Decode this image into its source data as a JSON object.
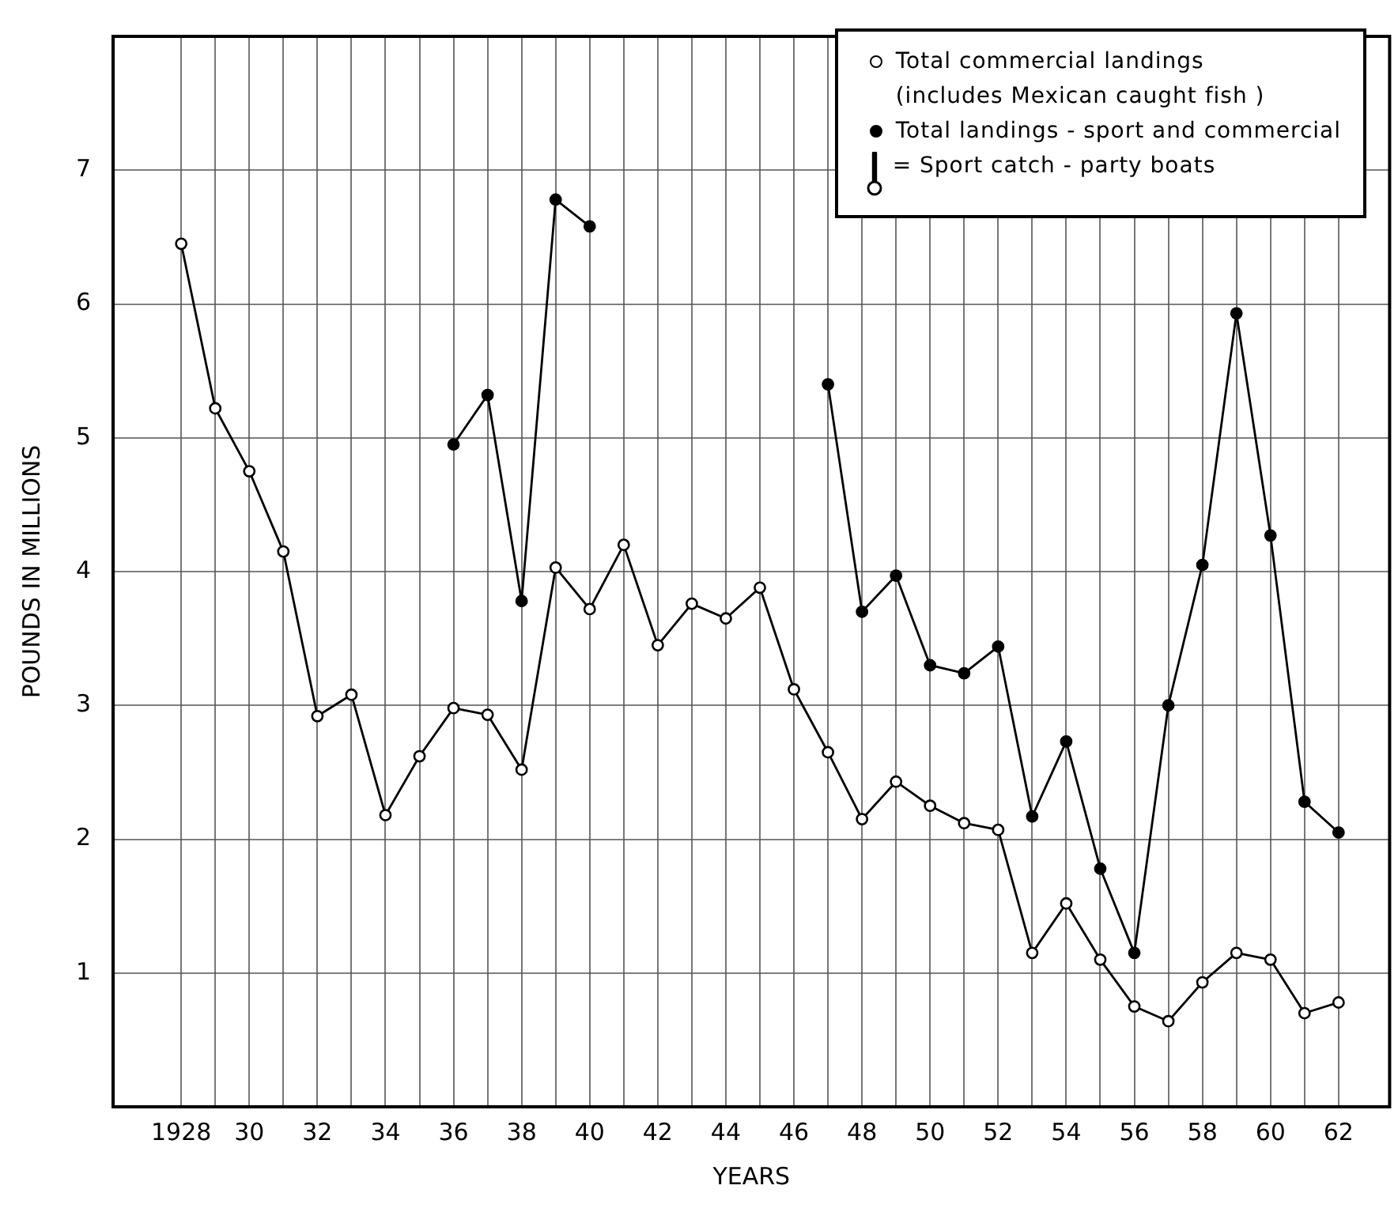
{
  "chart_data": {
    "type": "line",
    "xlabel": "YEARS",
    "ylabel": "POUNDS IN MILLIONS",
    "xlim": [
      1926,
      1963.5
    ],
    "ylim": [
      0,
      8
    ],
    "xticks": [
      {
        "value": 1928,
        "label": "1928"
      },
      {
        "value": 1929,
        "label": null
      },
      {
        "value": 1930,
        "label": "30"
      },
      {
        "value": 1931,
        "label": null
      },
      {
        "value": 1932,
        "label": "32"
      },
      {
        "value": 1933,
        "label": null
      },
      {
        "value": 1934,
        "label": "34"
      },
      {
        "value": 1935,
        "label": null
      },
      {
        "value": 1936,
        "label": "36"
      },
      {
        "value": 1937,
        "label": null
      },
      {
        "value": 1938,
        "label": "38"
      },
      {
        "value": 1939,
        "label": null
      },
      {
        "value": 1940,
        "label": "40"
      },
      {
        "value": 1941,
        "label": null
      },
      {
        "value": 1942,
        "label": "42"
      },
      {
        "value": 1943,
        "label": null
      },
      {
        "value": 1944,
        "label": "44"
      },
      {
        "value": 1945,
        "label": null
      },
      {
        "value": 1946,
        "label": "46"
      },
      {
        "value": 1947,
        "label": null
      },
      {
        "value": 1948,
        "label": "48"
      },
      {
        "value": 1949,
        "label": null
      },
      {
        "value": 1950,
        "label": "50"
      },
      {
        "value": 1951,
        "label": null
      },
      {
        "value": 1952,
        "label": "52"
      },
      {
        "value": 1953,
        "label": null
      },
      {
        "value": 1954,
        "label": "54"
      },
      {
        "value": 1955,
        "label": null
      },
      {
        "value": 1956,
        "label": "56"
      },
      {
        "value": 1957,
        "label": null
      },
      {
        "value": 1958,
        "label": "58"
      },
      {
        "value": 1959,
        "label": null
      },
      {
        "value": 1960,
        "label": "60"
      },
      {
        "value": 1961,
        "label": null
      },
      {
        "value": 1962,
        "label": "62"
      }
    ],
    "yticks": [
      1,
      2,
      3,
      4,
      5,
      6,
      7
    ],
    "grid": true,
    "legend": "top right",
    "marker": "circle",
    "line_style": "solid",
    "series": [
      {
        "name": "Total commercial landings\n(includes Mexican caught fish )",
        "color": "#000000",
        "x": [
          1928,
          1929,
          1930,
          1931,
          1932,
          1933,
          1934,
          1935,
          1936,
          1937,
          1938,
          1939,
          1940,
          1941,
          1942,
          1943,
          1944,
          1945,
          1946,
          1947,
          1948,
          1949,
          1950,
          1951,
          1952,
          1953,
          1954,
          1955,
          1956,
          1957,
          1958,
          1959,
          1960,
          1961,
          1962
        ],
        "values": [
          6.45,
          5.22,
          4.75,
          4.15,
          2.92,
          3.08,
          2.18,
          2.62,
          2.98,
          2.93,
          2.52,
          4.03,
          3.72,
          4.2,
          3.45,
          3.76,
          3.65,
          3.88,
          3.12,
          2.65,
          2.15,
          2.43,
          2.25,
          2.12,
          2.07,
          1.15,
          1.52,
          1.1,
          0.75,
          0.64,
          0.93,
          1.15,
          1.1,
          0.7,
          0.78
        ]
      },
      {
        "name": "Total landings - sport and commercial",
        "color": "#000000",
        "x": [
          1936,
          1937,
          1938,
          1939,
          1940,
          1941,
          1942,
          1943,
          1944,
          1945,
          1946,
          1947,
          1948,
          1949,
          1950,
          1951,
          1952,
          1953,
          1954,
          1955,
          1956,
          1957,
          1958,
          1959,
          1960,
          1961,
          1962
        ],
        "values": [
          4.95,
          5.32,
          3.78,
          6.78,
          6.58,
          null,
          null,
          null,
          null,
          null,
          null,
          5.4,
          3.7,
          3.97,
          3.3,
          3.24,
          3.44,
          2.17,
          2.73,
          1.78,
          1.15,
          3.0,
          4.05,
          5.93,
          4.27,
          2.28,
          2.05
        ]
      }
    ],
    "annotations": [
      "= Sport catch - party boats"
    ]
  }
}
